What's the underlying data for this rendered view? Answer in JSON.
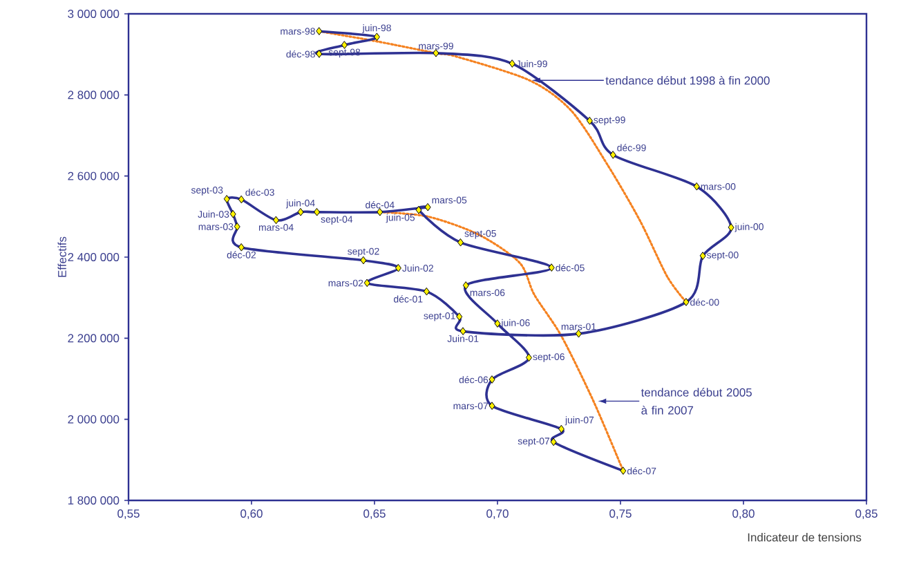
{
  "chart_data": {
    "type": "line",
    "xlabel": "Indicateur de tensions",
    "ylabel": "Effectifs",
    "xlim": [
      0.55,
      0.85
    ],
    "ylim": [
      1800000,
      3000000
    ],
    "xticks": [
      {
        "value": 0.55,
        "label": "0,55"
      },
      {
        "value": 0.6,
        "label": "0,60"
      },
      {
        "value": 0.65,
        "label": "0,65"
      },
      {
        "value": 0.7,
        "label": "0,70"
      },
      {
        "value": 0.75,
        "label": "0,75"
      },
      {
        "value": 0.8,
        "label": "0,80"
      },
      {
        "value": 0.85,
        "label": "0,85"
      }
    ],
    "yticks": [
      {
        "value": 1800000,
        "label": "1 800 000"
      },
      {
        "value": 2000000,
        "label": "2 000 000"
      },
      {
        "value": 2200000,
        "label": "2 200 000"
      },
      {
        "value": 2400000,
        "label": "2 400 000"
      },
      {
        "value": 2600000,
        "label": "2 600 000"
      },
      {
        "value": 2800000,
        "label": "2 800 000"
      },
      {
        "value": 3000000,
        "label": "3 000 000"
      }
    ],
    "marker": "diamond",
    "series": [
      {
        "color": "#2e3192",
        "x": [
          0.6275,
          0.651,
          0.6378,
          0.6275,
          0.675,
          0.706,
          0.7375,
          0.747,
          0.781,
          0.795,
          0.7835,
          0.7767,
          0.733,
          0.686,
          0.6845,
          0.6712,
          0.647,
          0.6597,
          0.6455,
          0.5959,
          0.5942,
          0.5925,
          0.59,
          0.5959,
          0.61,
          0.62,
          0.6266,
          0.6522,
          0.6717,
          0.668,
          0.685,
          0.722,
          0.6872,
          0.7,
          0.7128,
          0.6978,
          0.6978,
          0.726,
          0.7228,
          0.7511
        ],
        "values": [
          2957000,
          2943000,
          2923000,
          2901000,
          2903000,
          2877000,
          2736000,
          2652000,
          2574000,
          2473000,
          2403000,
          2289000,
          2211000,
          2217000,
          2253000,
          2315000,
          2336000,
          2373000,
          2392000,
          2424000,
          2475000,
          2506000,
          2543000,
          2542000,
          2491000,
          2511000,
          2511000,
          2511000,
          2523000,
          2516000,
          2436000,
          2374000,
          2330000,
          2236000,
          2152000,
          2098000,
          2033000,
          1976000,
          1944000,
          1873000
        ]
      },
      {
        "color": "#f58220",
        "marker": "none",
        "line_style": "dotted",
        "x": [
          0.6275,
          0.651,
          0.675,
          0.683,
          0.713,
          0.73,
          0.745,
          0.758,
          0.769,
          0.7767
        ],
        "values": [
          2957000,
          2932000,
          2903000,
          2895000,
          2836000,
          2761000,
          2625000,
          2489000,
          2352000,
          2289000
        ]
      },
      {
        "color": "#f58220",
        "marker": "none",
        "line_style": "dotted",
        "x": [
          0.6522,
          0.6717,
          0.6925,
          0.709,
          0.715,
          0.726,
          0.739,
          0.7511
        ],
        "values": [
          2511000,
          2500000,
          2455000,
          2386000,
          2307000,
          2205000,
          2045000,
          1873000
        ]
      }
    ],
    "annotations": [
      {
        "text": "mars-98",
        "x": 0.6275,
        "y": 2957000
      },
      {
        "text": "juin-98",
        "x": 0.651,
        "y": 2943000
      },
      {
        "text": "sept-98",
        "x": 0.6378,
        "y": 2923000
      },
      {
        "text": "déc-98",
        "x": 0.6275,
        "y": 2901000
      },
      {
        "text": "mars-99",
        "x": 0.675,
        "y": 2903000
      },
      {
        "text": "Juin-99",
        "x": 0.706,
        "y": 2877000
      },
      {
        "text": "sept-99",
        "x": 0.7375,
        "y": 2736000
      },
      {
        "text": "déc-99",
        "x": 0.747,
        "y": 2652000
      },
      {
        "text": "mars-00",
        "x": 0.781,
        "y": 2574000
      },
      {
        "text": "juin-00",
        "x": 0.795,
        "y": 2473000
      },
      {
        "text": "sept-00",
        "x": 0.7835,
        "y": 2403000
      },
      {
        "text": "déc-00",
        "x": 0.7767,
        "y": 2289000
      },
      {
        "text": "mars-01",
        "x": 0.733,
        "y": 2211000
      },
      {
        "text": "Juin-01",
        "x": 0.686,
        "y": 2217000
      },
      {
        "text": "sept-01",
        "x": 0.6845,
        "y": 2253000
      },
      {
        "text": "déc-01",
        "x": 0.6712,
        "y": 2315000
      },
      {
        "text": "mars-02",
        "x": 0.647,
        "y": 2336000
      },
      {
        "text": "Juin-02",
        "x": 0.6597,
        "y": 2373000
      },
      {
        "text": "sept-02",
        "x": 0.6455,
        "y": 2392000
      },
      {
        "text": "déc-02",
        "x": 0.5959,
        "y": 2424000
      },
      {
        "text": "mars-03",
        "x": 0.5942,
        "y": 2475000
      },
      {
        "text": "Juin-03",
        "x": 0.5925,
        "y": 2506000
      },
      {
        "text": "sept-03",
        "x": 0.59,
        "y": 2543000
      },
      {
        "text": "déc-03",
        "x": 0.5959,
        "y": 2542000
      },
      {
        "text": "mars-04",
        "x": 0.61,
        "y": 2491000
      },
      {
        "text": "juin-04",
        "x": 0.62,
        "y": 2511000
      },
      {
        "text": "sept-04",
        "x": 0.6266,
        "y": 2511000
      },
      {
        "text": "déc-04",
        "x": 0.6522,
        "y": 2511000
      },
      {
        "text": "mars-05",
        "x": 0.6717,
        "y": 2523000
      },
      {
        "text": "juin-05",
        "x": 0.668,
        "y": 2516000
      },
      {
        "text": "sept-05",
        "x": 0.685,
        "y": 2436000
      },
      {
        "text": "déc-05",
        "x": 0.722,
        "y": 2374000
      },
      {
        "text": "mars-06",
        "x": 0.6872,
        "y": 2330000
      },
      {
        "text": "juin-06",
        "x": 0.7,
        "y": 2236000
      },
      {
        "text": "sept-06",
        "x": 0.7128,
        "y": 2152000
      },
      {
        "text": "déc-06",
        "x": 0.6978,
        "y": 2098000
      },
      {
        "text": "mars-07",
        "x": 0.6978,
        "y": 2033000
      },
      {
        "text": "juin-07",
        "x": 0.726,
        "y": 1976000
      },
      {
        "text": "sept-07",
        "x": 0.7228,
        "y": 1944000
      },
      {
        "text": "déc-07",
        "x": 0.7511,
        "y": 1873000
      },
      {
        "text": "tendance début 1998 à fin 2000",
        "x": 0.714,
        "y": 2836000
      },
      "tendance début 2005 à fin 2007"
    ]
  }
}
